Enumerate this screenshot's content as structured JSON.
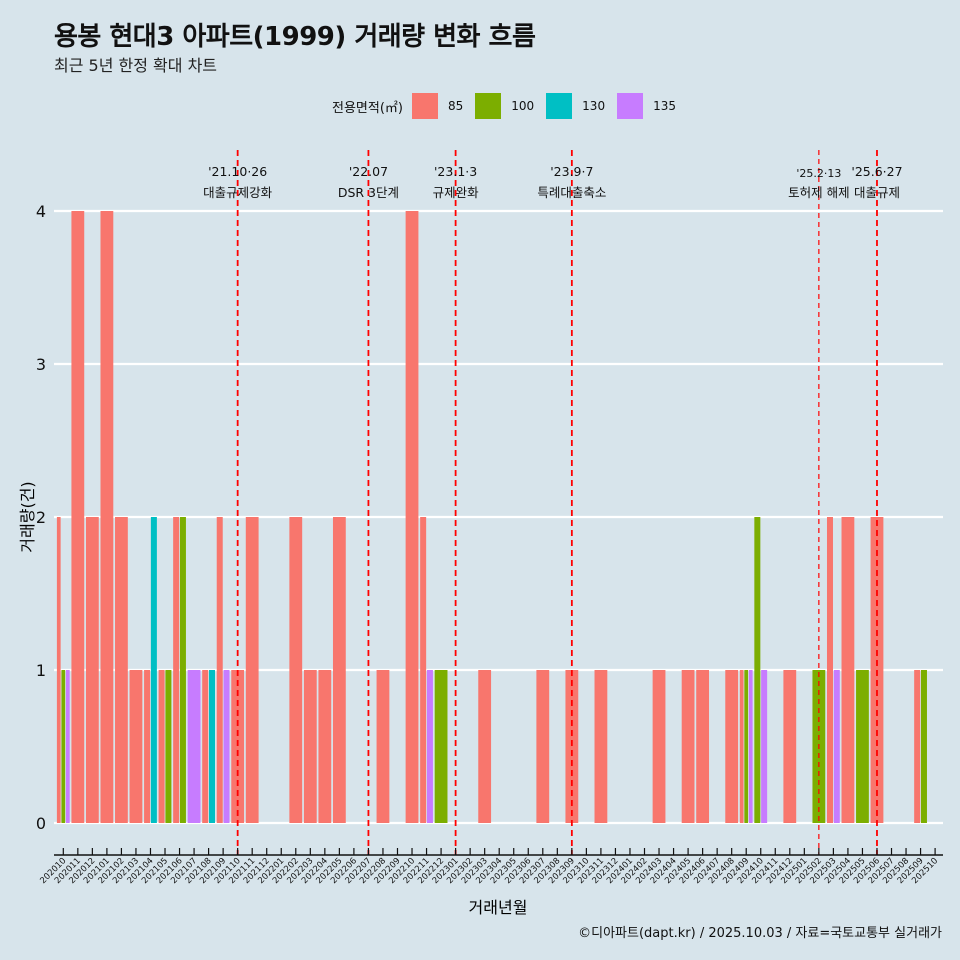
{
  "chart_data": {
    "type": "bar",
    "title": "용봉 현대3 아파트(1999) 거래량 변화 흐름",
    "subtitle": "최근 5년 한정 확대 차트",
    "xlabel": "거래년월",
    "ylabel": "거래량(건)",
    "ylim": [
      0,
      4
    ],
    "yticks": [
      "0",
      "1",
      "2",
      "3",
      "4"
    ],
    "grid": true,
    "legend": {
      "title": "전용면적(㎡)",
      "placement": "top",
      "entries": [
        {
          "name": "85",
          "color": "#F8766D"
        },
        {
          "name": "100",
          "color": "#7CAE00"
        },
        {
          "name": "130",
          "color": "#00BFC4"
        },
        {
          "name": "135",
          "color": "#C77CFF"
        }
      ]
    },
    "categories": [
      "202010",
      "202011",
      "202012",
      "202101",
      "202102",
      "202103",
      "202104",
      "202105",
      "202106",
      "202107",
      "202108",
      "202109",
      "202110",
      "202111",
      "202112",
      "202201",
      "202202",
      "202203",
      "202204",
      "202205",
      "202206",
      "202207",
      "202208",
      "202209",
      "202210",
      "202211",
      "202212",
      "202301",
      "202302",
      "202303",
      "202304",
      "202305",
      "202306",
      "202307",
      "202308",
      "202309",
      "202310",
      "202311",
      "202312",
      "202401",
      "202402",
      "202403",
      "202404",
      "202405",
      "202406",
      "202407",
      "202408",
      "202409",
      "202410",
      "202411",
      "202412",
      "202501",
      "202502",
      "202503",
      "202504",
      "202505",
      "202506",
      "202507",
      "202508",
      "202509",
      "202510"
    ],
    "bars": [
      {
        "month": "202010",
        "values": {
          "85": 2,
          "100": 1,
          "135": 1
        }
      },
      {
        "month": "202011",
        "values": {
          "85": 4
        }
      },
      {
        "month": "202012",
        "values": {
          "85": 2
        }
      },
      {
        "month": "202101",
        "values": {
          "85": 4
        }
      },
      {
        "month": "202102",
        "values": {
          "85": 2
        }
      },
      {
        "month": "202103",
        "values": {
          "85": 1
        }
      },
      {
        "month": "202104",
        "values": {
          "85": 1,
          "130": 2
        }
      },
      {
        "month": "202105",
        "values": {
          "85": 1,
          "100": 1
        }
      },
      {
        "month": "202106",
        "values": {
          "85": 2,
          "100": 2
        }
      },
      {
        "month": "202107",
        "values": {
          "135": 1
        }
      },
      {
        "month": "202108",
        "values": {
          "85": 1,
          "130": 1
        }
      },
      {
        "month": "202109",
        "values": {
          "85": 2,
          "135": 1
        }
      },
      {
        "month": "202110",
        "values": {
          "85": 1
        }
      },
      {
        "month": "202111",
        "values": {
          "85": 2
        }
      },
      {
        "month": "202202",
        "values": {
          "85": 2
        }
      },
      {
        "month": "202203",
        "values": {
          "85": 1
        }
      },
      {
        "month": "202204",
        "values": {
          "85": 1
        }
      },
      {
        "month": "202205",
        "values": {
          "85": 2
        }
      },
      {
        "month": "202208",
        "values": {
          "85": 1
        }
      },
      {
        "month": "202210",
        "values": {
          "85": 4
        }
      },
      {
        "month": "202211",
        "values": {
          "85": 2,
          "135": 1
        }
      },
      {
        "month": "202212",
        "values": {
          "100": 1
        }
      },
      {
        "month": "202303",
        "values": {
          "85": 1
        }
      },
      {
        "month": "202307",
        "values": {
          "85": 1
        }
      },
      {
        "month": "202309",
        "values": {
          "85": 1
        }
      },
      {
        "month": "202311",
        "values": {
          "85": 1
        }
      },
      {
        "month": "202403",
        "values": {
          "85": 1
        }
      },
      {
        "month": "202405",
        "values": {
          "85": 1
        }
      },
      {
        "month": "202406",
        "values": {
          "85": 1
        }
      },
      {
        "month": "202408",
        "values": {
          "85": 1
        }
      },
      {
        "month": "202409",
        "values": {
          "85": 1,
          "100": 1,
          "135": 1
        }
      },
      {
        "month": "202410",
        "values": {
          "100": 2,
          "135": 1
        }
      },
      {
        "month": "202412",
        "values": {
          "85": 1
        }
      },
      {
        "month": "202502",
        "values": {
          "100": 1
        }
      },
      {
        "month": "202503",
        "values": {
          "85": 2,
          "135": 1
        }
      },
      {
        "month": "202504",
        "values": {
          "85": 2
        }
      },
      {
        "month": "202505",
        "values": {
          "100": 1
        }
      },
      {
        "month": "202506",
        "values": {
          "85": 2
        }
      },
      {
        "month": "202509",
        "values": {
          "85": 1,
          "100": 1
        }
      }
    ],
    "events": [
      {
        "month": "202110",
        "date": "'21.10·26",
        "label": "대출규제강화",
        "style": "bold"
      },
      {
        "month": "202207",
        "date": "'22.07",
        "label": "DSR 3단계",
        "style": "bold"
      },
      {
        "month": "202301",
        "date": "'23.1·3",
        "label": "규제완화",
        "style": "bold"
      },
      {
        "month": "202309",
        "date": "'23.9·7",
        "label": "특례대출축소",
        "style": "bold"
      },
      {
        "month": "202502",
        "date": "'25.2·13",
        "label": "토허제 해제",
        "style": "thin"
      },
      {
        "month": "202506",
        "date": "'25.6·27",
        "label": "대출규제",
        "style": "bold"
      }
    ],
    "event_line_color": "#FF0000"
  },
  "caption": "©디아파트(dapt.kr) / 2025.10.03 / 자료=국토교통부 실거래가"
}
